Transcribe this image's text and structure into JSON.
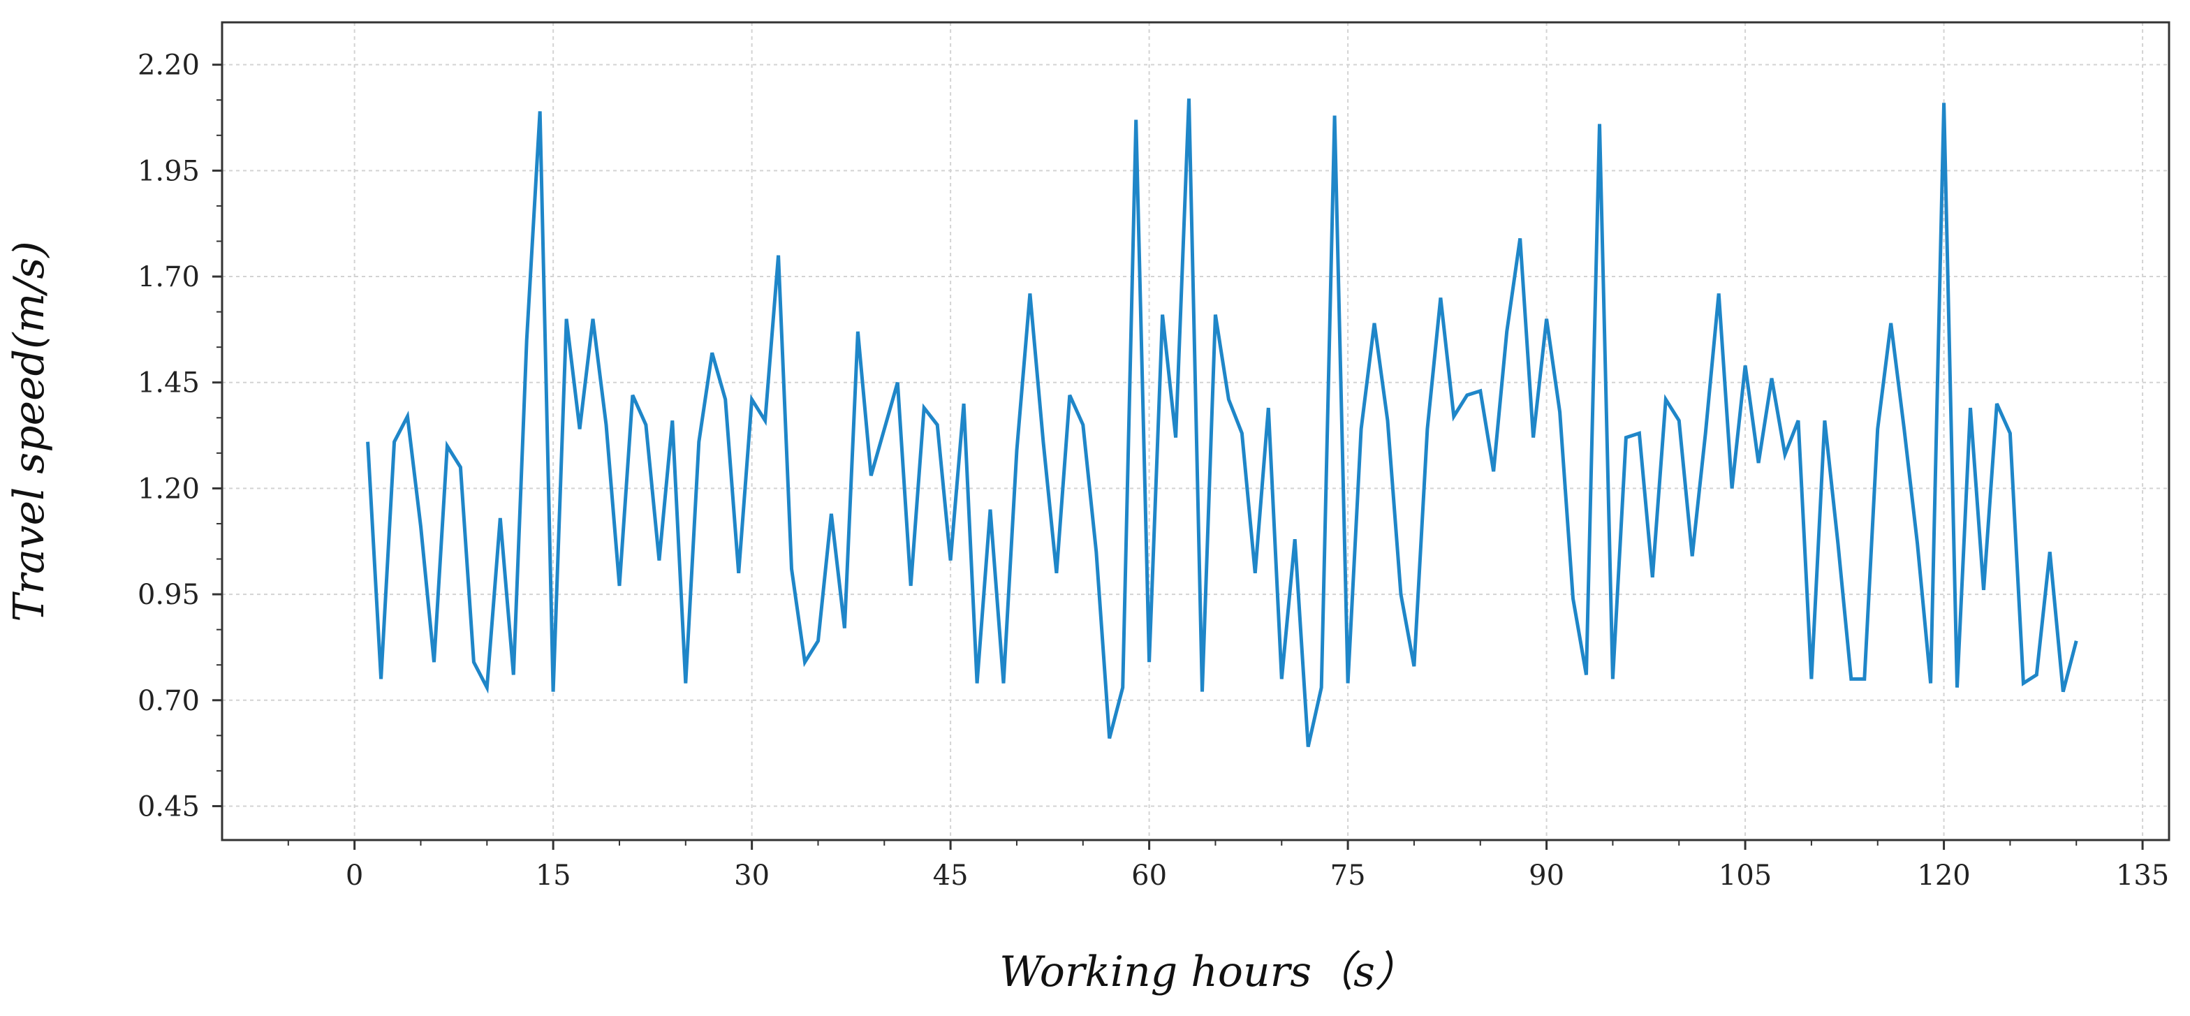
{
  "chart_data": {
    "type": "line",
    "title": "",
    "xlabel": "Working hours（s）",
    "ylabel": "Travel speed(m/s)",
    "xlim": [
      -10,
      137
    ],
    "ylim": [
      0.37,
      2.3
    ],
    "xticks": [
      0,
      15,
      30,
      45,
      60,
      75,
      90,
      105,
      120,
      135
    ],
    "yticks": [
      0.45,
      0.7,
      0.95,
      1.2,
      1.45,
      1.7,
      1.95,
      2.2
    ],
    "xtick_labels": [
      "0",
      "15",
      "30",
      "45",
      "60",
      "75",
      "90",
      "105",
      "120",
      "135"
    ],
    "ytick_labels": [
      "0.45",
      "0.70",
      "0.95",
      "1.20",
      "1.45",
      "1.70",
      "1.95",
      "2.20"
    ],
    "grid": true,
    "series": [
      {
        "color": "#1f86c8",
        "x": [
          1,
          2,
          3,
          4,
          5,
          6,
          7,
          8,
          9,
          10,
          11,
          12,
          13,
          14,
          15,
          16,
          17,
          18,
          19,
          20,
          21,
          22,
          23,
          24,
          25,
          26,
          27,
          28,
          29,
          30,
          31,
          32,
          33,
          34,
          35,
          36,
          37,
          38,
          39,
          40,
          41,
          42,
          43,
          44,
          45,
          46,
          47,
          48,
          49,
          50,
          51,
          52,
          53,
          54,
          55,
          56,
          57,
          58,
          59,
          60,
          61,
          62,
          63,
          64,
          65,
          66,
          67,
          68,
          69,
          70,
          71,
          72,
          73,
          74,
          75,
          76,
          77,
          78,
          79,
          80,
          81,
          82,
          83,
          84,
          85,
          86,
          87,
          88,
          89,
          90,
          91,
          92,
          93,
          94,
          95,
          96,
          97,
          98,
          99,
          100,
          101,
          102,
          103,
          104,
          105,
          106,
          107,
          108,
          109,
          110,
          111,
          112,
          113,
          114,
          115,
          116,
          117,
          118,
          119,
          120,
          121,
          122,
          123,
          124,
          125,
          126,
          127,
          128,
          129,
          130
        ],
        "values": [
          1.31,
          0.75,
          1.31,
          1.37,
          1.11,
          0.79,
          1.3,
          1.25,
          0.79,
          0.73,
          1.13,
          0.76,
          1.55,
          2.09,
          0.72,
          1.6,
          1.34,
          1.6,
          1.35,
          0.97,
          1.42,
          1.35,
          1.03,
          1.36,
          0.74,
          1.31,
          1.52,
          1.41,
          1.0,
          1.41,
          1.36,
          1.75,
          1.01,
          0.79,
          0.84,
          1.14,
          0.87,
          1.57,
          1.23,
          1.34,
          1.45,
          0.97,
          1.39,
          1.35,
          1.03,
          1.4,
          0.74,
          1.15,
          0.74,
          1.29,
          1.66,
          1.31,
          1.0,
          1.42,
          1.35,
          1.05,
          0.61,
          0.73,
          2.07,
          0.79,
          1.61,
          1.32,
          2.12,
          0.72,
          1.61,
          1.41,
          1.33,
          1.0,
          1.39,
          0.75,
          1.08,
          0.59,
          0.73,
          2.08,
          0.74,
          1.34,
          1.59,
          1.36,
          0.95,
          0.78,
          1.34,
          1.65,
          1.37,
          1.42,
          1.43,
          1.24,
          1.57,
          1.79,
          1.32,
          1.6,
          1.38,
          0.94,
          0.76,
          2.06,
          0.75,
          1.32,
          1.33,
          0.99,
          1.41,
          1.36,
          1.04,
          1.33,
          1.66,
          1.2,
          1.49,
          1.26,
          1.46,
          1.28,
          1.36,
          0.75,
          1.36,
          1.07,
          0.75,
          0.75,
          1.34,
          1.59,
          1.34,
          1.07,
          0.74,
          2.11,
          0.73,
          1.39,
          0.96,
          1.4,
          1.33,
          0.74,
          0.76,
          1.05,
          0.72,
          0.84
        ]
      }
    ]
  }
}
